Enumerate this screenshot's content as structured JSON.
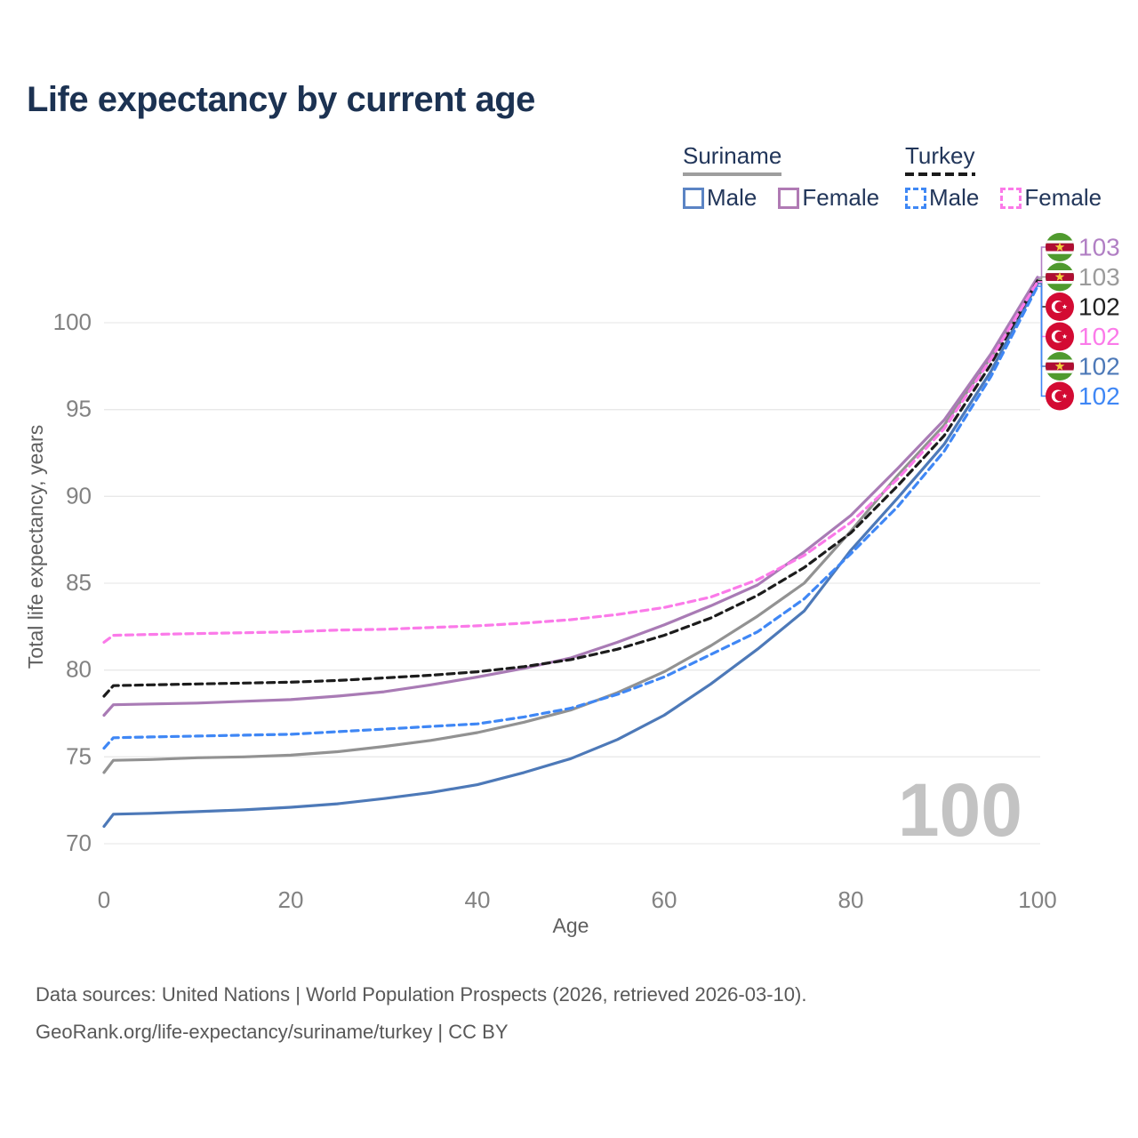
{
  "title": "Life expectancy by current age",
  "legend": {
    "groups": [
      {
        "label": "Suriname",
        "line_style": "solid",
        "items": [
          {
            "label": "Male",
            "color": "#5b84c4",
            "dashed": false
          },
          {
            "label": "Female",
            "color": "#b07ab4",
            "dashed": false
          }
        ]
      },
      {
        "label": "Turkey",
        "line_style": "dashed",
        "items": [
          {
            "label": "Male",
            "color": "#3f88f5",
            "dashed": true
          },
          {
            "label": "Female",
            "color": "#fb79e8",
            "dashed": true
          }
        ]
      }
    ]
  },
  "chart_data": {
    "type": "line",
    "title": "Life expectancy by current age",
    "xlabel": "Age",
    "ylabel": "Total life expectancy, years",
    "x_ticks": [
      0,
      20,
      40,
      60,
      80,
      100
    ],
    "y_ticks": [
      70,
      75,
      80,
      85,
      90,
      95,
      100
    ],
    "xlim": [
      0,
      100
    ],
    "ylim": [
      70,
      103
    ],
    "grid": "horizontal",
    "watermark": "100",
    "ages": [
      0,
      1,
      5,
      10,
      15,
      20,
      25,
      30,
      35,
      40,
      45,
      50,
      55,
      60,
      65,
      70,
      75,
      80,
      85,
      90,
      95,
      100
    ],
    "series": [
      {
        "key": "suriname_total",
        "name": "Suriname (both sexes)",
        "color": "#929292",
        "dashed": false,
        "values": [
          74.1,
          74.8,
          74.85,
          74.95,
          75.0,
          75.1,
          75.3,
          75.6,
          75.95,
          76.4,
          77.0,
          77.7,
          78.7,
          79.9,
          81.4,
          83.1,
          85.0,
          88.0,
          91.2,
          94.1,
          98.0,
          102.52
        ]
      },
      {
        "key": "suriname_female",
        "name": "Suriname Female",
        "color": "#a97bb5",
        "dashed": false,
        "values": [
          77.4,
          78.0,
          78.05,
          78.1,
          78.2,
          78.3,
          78.5,
          78.75,
          79.15,
          79.6,
          80.1,
          80.7,
          81.6,
          82.6,
          83.7,
          84.9,
          86.8,
          88.9,
          91.6,
          94.4,
          98.2,
          102.62
        ]
      },
      {
        "key": "suriname_male",
        "name": "Suriname Male",
        "color": "#4d79b8",
        "dashed": false,
        "values": [
          71.0,
          71.7,
          71.75,
          71.85,
          71.95,
          72.1,
          72.3,
          72.6,
          72.95,
          73.4,
          74.1,
          74.9,
          76.0,
          77.4,
          79.2,
          81.2,
          83.4,
          86.9,
          89.9,
          93.0,
          97.2,
          102.26
        ]
      },
      {
        "key": "turkey_total",
        "name": "Turkey (both sexes)",
        "color": "#1c1c1c",
        "dashed": true,
        "values": [
          78.5,
          79.1,
          79.15,
          79.2,
          79.25,
          79.3,
          79.4,
          79.55,
          79.7,
          79.9,
          80.2,
          80.6,
          81.2,
          82.0,
          83.0,
          84.3,
          85.9,
          87.9,
          90.6,
          93.5,
          97.6,
          102.42
        ]
      },
      {
        "key": "turkey_female",
        "name": "Turkey Female",
        "color": "#fb7ae9",
        "dashed": true,
        "values": [
          81.6,
          82.0,
          82.05,
          82.1,
          82.15,
          82.2,
          82.3,
          82.35,
          82.45,
          82.55,
          82.7,
          82.9,
          83.2,
          83.6,
          84.2,
          85.2,
          86.6,
          88.5,
          91.0,
          93.9,
          97.9,
          102.36
        ]
      },
      {
        "key": "turkey_male",
        "name": "Turkey Male",
        "color": "#3f87f5",
        "dashed": true,
        "values": [
          75.5,
          76.1,
          76.15,
          76.2,
          76.25,
          76.3,
          76.45,
          76.6,
          76.75,
          76.9,
          77.3,
          77.8,
          78.6,
          79.6,
          80.9,
          82.2,
          84.1,
          86.7,
          89.4,
          92.6,
          96.9,
          102.1
        ]
      }
    ],
    "end_labels": [
      {
        "text": "103",
        "series": "suriname_female",
        "flag": "suriname",
        "color": "#b17fc4"
      },
      {
        "text": "103",
        "series": "suriname_total",
        "flag": "suriname",
        "color": "#9b9b9b"
      },
      {
        "text": "102",
        "series": "turkey_total",
        "flag": "turkey",
        "color": "#212121"
      },
      {
        "text": "102",
        "series": "turkey_female",
        "flag": "turkey",
        "color": "#fb7ae9"
      },
      {
        "text": "102",
        "series": "suriname_male",
        "flag": "suriname",
        "color": "#4d79b8"
      },
      {
        "text": "102",
        "series": "turkey_male",
        "flag": "turkey",
        "color": "#3f87f5"
      }
    ]
  },
  "footer": {
    "line1": "Data sources: United Nations | World Population Prospects (2026, retrieved 2026-03-10).",
    "line2": "GeoRank.org/life-expectancy/suriname/turkey | CC BY"
  }
}
